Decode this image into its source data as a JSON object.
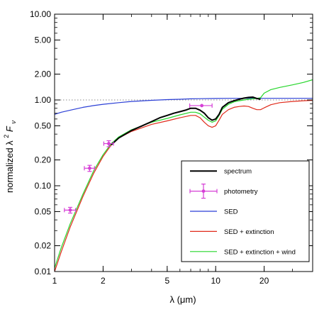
{
  "chart_data": {
    "type": "line",
    "xlabel": "λ (μm)",
    "ylabel_main": "normalized  λ",
    "ylabel_sup": "2",
    "ylabel_var": " F",
    "ylabel_sub": "ν",
    "xscale": "log",
    "yscale": "log",
    "xlim": [
      1,
      40
    ],
    "ylim": [
      0.01,
      10
    ],
    "xticks": [
      1,
      2,
      5,
      10,
      20
    ],
    "xtick_labels": [
      "1",
      "2",
      "5",
      "10",
      "20"
    ],
    "yticks": [
      0.01,
      0.02,
      0.05,
      0.1,
      0.2,
      0.5,
      1,
      2,
      5,
      10
    ],
    "ytick_labels": [
      "0.01",
      "0.02",
      "0.05",
      "0.10",
      "0.20",
      "0.50",
      "1.00",
      "2.00",
      "5.00",
      "10.00"
    ],
    "reference_line": {
      "y": 1.0,
      "style": "dotted"
    },
    "legend_placement": "lower-right",
    "series": [
      {
        "name": "SED",
        "color": "#2b3fd6",
        "x": [
          1,
          1.1,
          1.25,
          1.5,
          1.75,
          2,
          2.5,
          3,
          4,
          5,
          6,
          7,
          8,
          10,
          12,
          15,
          20,
          25,
          30,
          40
        ],
        "y": [
          0.68,
          0.72,
          0.76,
          0.82,
          0.86,
          0.89,
          0.93,
          0.96,
          0.99,
          1.01,
          1.02,
          1.03,
          1.035,
          1.04,
          1.045,
          1.045,
          1.045,
          1.045,
          1.045,
          1.045
        ]
      },
      {
        "name": "SED + extinction",
        "color": "#e02a1a",
        "x": [
          1,
          1.1,
          1.25,
          1.5,
          1.75,
          2,
          2.25,
          2.5,
          3,
          4,
          5,
          6,
          7,
          7.5,
          8,
          8.5,
          9,
          9.5,
          10,
          10.5,
          11,
          12,
          13,
          14,
          15,
          16,
          17,
          18,
          19,
          20,
          22,
          25,
          30,
          35,
          40
        ],
        "y": [
          0.01,
          0.017,
          0.033,
          0.075,
          0.14,
          0.22,
          0.3,
          0.36,
          0.43,
          0.52,
          0.57,
          0.62,
          0.66,
          0.66,
          0.62,
          0.55,
          0.5,
          0.48,
          0.5,
          0.58,
          0.68,
          0.77,
          0.82,
          0.84,
          0.85,
          0.84,
          0.8,
          0.77,
          0.77,
          0.81,
          0.88,
          0.93,
          0.96,
          0.98,
          0.99
        ]
      },
      {
        "name": "SED + extinction + wind",
        "color": "#25d62a",
        "x": [
          1,
          1.1,
          1.25,
          1.5,
          1.75,
          2,
          2.25,
          2.5,
          3,
          4,
          5,
          6,
          7,
          7.5,
          8,
          8.5,
          9,
          9.5,
          10,
          10.5,
          11,
          12,
          13,
          14,
          15,
          16,
          17,
          18,
          19,
          20,
          22,
          25,
          30,
          35,
          40
        ],
        "y": [
          0.011,
          0.019,
          0.036,
          0.08,
          0.15,
          0.23,
          0.31,
          0.37,
          0.45,
          0.55,
          0.61,
          0.67,
          0.72,
          0.72,
          0.69,
          0.63,
          0.58,
          0.55,
          0.57,
          0.66,
          0.78,
          0.89,
          0.95,
          0.98,
          1.0,
          1.02,
          1.03,
          1.04,
          1.06,
          1.2,
          1.32,
          1.4,
          1.5,
          1.6,
          1.72
        ]
      },
      {
        "name": "spectrum",
        "color": "#000000",
        "x": [
          2.25,
          2.5,
          3,
          3.5,
          4,
          4.5,
          5,
          5.5,
          6,
          6.5,
          7,
          7.5,
          8,
          8.5,
          9,
          9.5,
          10,
          10.5,
          11,
          12,
          13,
          14,
          15,
          16,
          17,
          18,
          19
        ],
        "y": [
          0.3,
          0.36,
          0.44,
          0.5,
          0.56,
          0.62,
          0.66,
          0.7,
          0.73,
          0.76,
          0.8,
          0.8,
          0.76,
          0.7,
          0.62,
          0.58,
          0.6,
          0.68,
          0.82,
          0.93,
          0.98,
          1.02,
          1.05,
          1.07,
          1.08,
          1.04,
          1.02
        ]
      }
    ],
    "photometry": {
      "name": "photometry",
      "color": "#d63fd6",
      "points": [
        {
          "x": 1.25,
          "y": 0.052,
          "xerr": 0.1,
          "yerr": 0.004
        },
        {
          "x": 1.65,
          "y": 0.16,
          "xerr": 0.12,
          "yerr": 0.013
        },
        {
          "x": 2.17,
          "y": 0.31,
          "xerr": 0.15,
          "yerr": 0.025
        },
        {
          "x": 8.2,
          "y": 0.86,
          "xerr": 1.3,
          "yerr": 0.0
        }
      ]
    },
    "legend": [
      {
        "label": "spectrum",
        "color": "#000000",
        "kind": "line"
      },
      {
        "label": "photometry",
        "color": "#d63fd6",
        "kind": "errorbar"
      },
      {
        "label": "SED",
        "color": "#2b3fd6",
        "kind": "line"
      },
      {
        "label": "SED + extinction",
        "color": "#e02a1a",
        "kind": "line"
      },
      {
        "label": "SED + extinction + wind",
        "color": "#25d62a",
        "kind": "line"
      }
    ]
  }
}
